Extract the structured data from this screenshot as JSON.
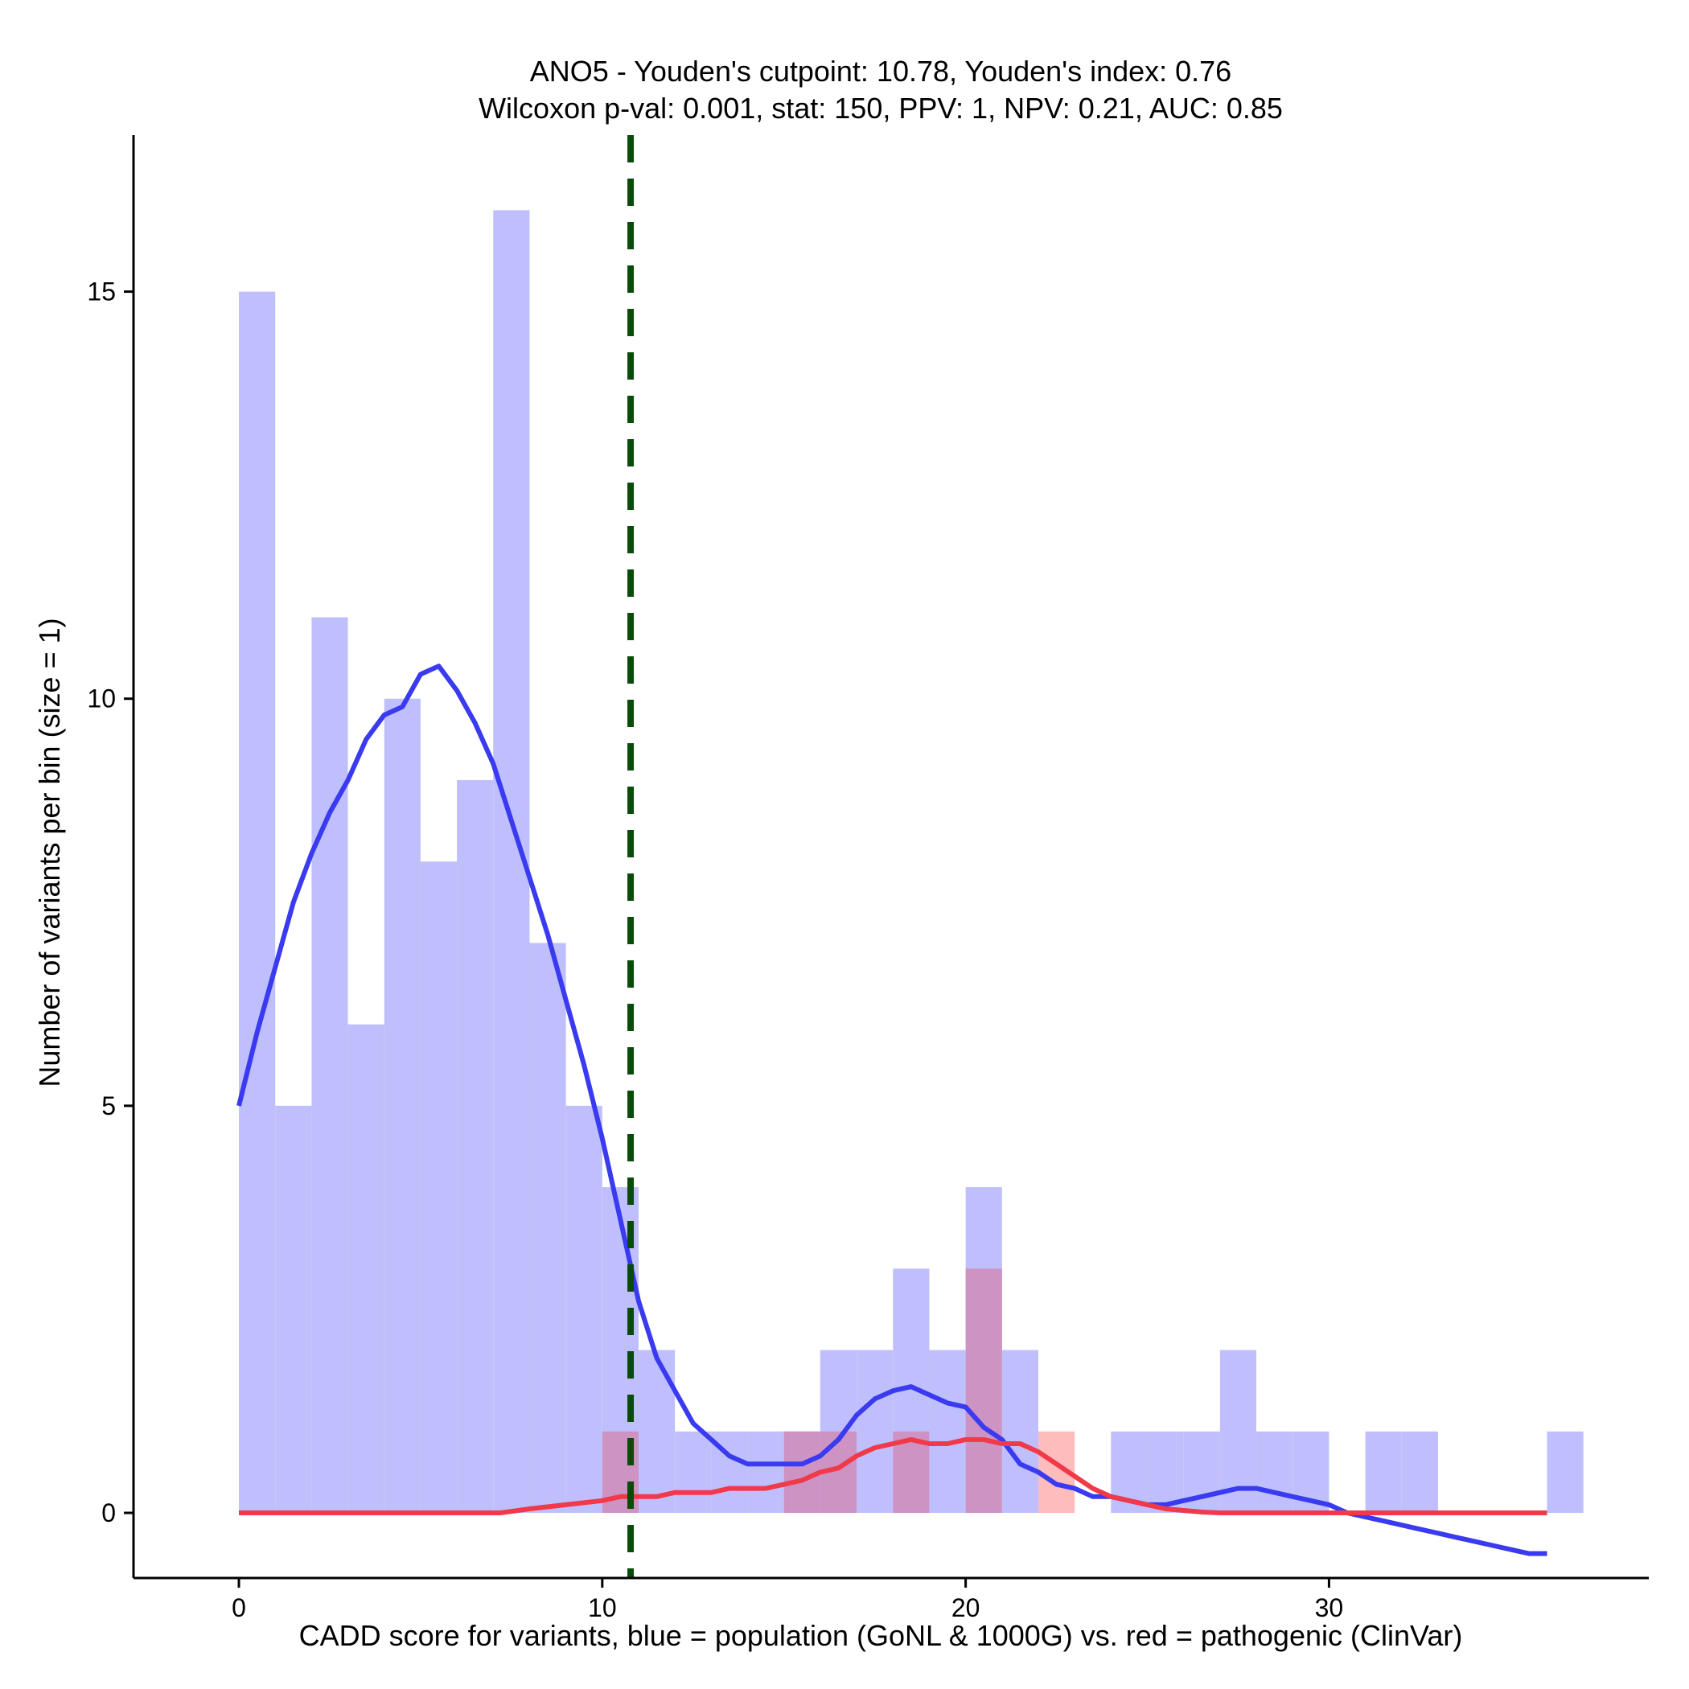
{
  "chart_data": {
    "type": "bar",
    "title_line1": "ANO5 - Youden's cutpoint: 10.78, Youden's index: 0.76",
    "title_line2": "Wilcoxon p-val: 0.001, stat: 150, PPV: 1, NPV: 0.21, AUC: 0.85",
    "xlabel": "CADD score for variants, blue = population (GoNL & 1000G) vs. red = pathogenic (ClinVar)",
    "ylabel": "Number of variants per bin (size = 1)",
    "xlim": [
      -2.9,
      38.8
    ],
    "ylim": [
      -0.8,
      17.1
    ],
    "x_ticks": [
      0,
      10,
      20,
      30
    ],
    "y_ticks": [
      0,
      5,
      10,
      15
    ],
    "bin_width": 1,
    "cutpoint": 10.78,
    "colors": {
      "population_bar": "#bfbffd",
      "pathogenic_bar": "#ffbcbc",
      "overlap_bar": "#cd93c3",
      "population_curve": "#3a3af0",
      "pathogenic_curve": "#f03a4a",
      "cutpoint_line": "#0a4a0a"
    },
    "series": [
      {
        "name": "population (GoNL & 1000G)",
        "bin_starts": [
          0,
          1,
          2,
          3,
          4,
          5,
          6,
          7,
          8,
          9,
          10,
          11,
          12,
          13,
          14,
          15,
          16,
          17,
          18,
          19,
          20,
          21,
          22,
          23,
          24,
          25,
          26,
          27,
          28,
          29,
          30,
          31,
          32,
          33,
          34,
          35,
          36
        ],
        "values": [
          15,
          5,
          11,
          6,
          10,
          8,
          9,
          16,
          7,
          5,
          4,
          2,
          1,
          1,
          1,
          1,
          2,
          2,
          3,
          2,
          4,
          2,
          0,
          0,
          1,
          1,
          1,
          2,
          1,
          1,
          0,
          1,
          1,
          0,
          0,
          0,
          1
        ]
      },
      {
        "name": "pathogenic (ClinVar)",
        "bin_starts": [
          10,
          15,
          16,
          18,
          20,
          22
        ],
        "values": [
          1,
          1,
          1,
          1,
          3,
          1
        ]
      }
    ],
    "density_population": {
      "x": [
        0,
        0.5,
        1,
        1.5,
        2,
        2.5,
        3,
        3.5,
        4,
        4.5,
        5,
        5.5,
        6,
        6.5,
        7,
        7.5,
        8,
        8.5,
        9,
        9.5,
        10,
        10.5,
        11,
        11.5,
        12,
        12.5,
        13,
        13.5,
        14,
        14.5,
        15,
        15.5,
        16,
        16.5,
        17,
        17.5,
        18,
        18.5,
        19,
        19.5,
        20,
        20.5,
        21,
        21.5,
        22,
        22.5,
        23,
        23.5,
        24,
        24.5,
        25,
        25.5,
        26,
        26.5,
        27,
        27.5,
        28,
        28.5,
        29,
        29.5,
        30,
        30.5,
        31,
        31.5,
        32,
        32.5,
        33,
        33.5,
        34,
        34.5,
        35,
        35.5,
        36
      ],
      "y": [
        5.0,
        5.9,
        6.7,
        7.5,
        8.1,
        8.6,
        9.0,
        9.5,
        9.8,
        9.9,
        10.3,
        10.4,
        10.1,
        9.7,
        9.2,
        8.5,
        7.8,
        7.1,
        6.3,
        5.5,
        4.6,
        3.6,
        2.6,
        1.9,
        1.5,
        1.1,
        0.9,
        0.7,
        0.6,
        0.6,
        0.6,
        0.6,
        0.7,
        0.9,
        1.2,
        1.4,
        1.5,
        1.55,
        1.45,
        1.35,
        1.3,
        1.05,
        0.9,
        0.6,
        0.5,
        0.35,
        0.3,
        0.2,
        0.2,
        0.15,
        0.1,
        0.1,
        0.15,
        0.2,
        0.25,
        0.3,
        0.3,
        0.25,
        0.2,
        0.15,
        0.1,
        0.0,
        -0.05,
        -0.1,
        -0.15,
        -0.2,
        -0.25,
        -0.3,
        -0.35,
        -0.4,
        -0.45,
        -0.5,
        -0.5
      ]
    },
    "density_pathogenic": {
      "x": [
        0,
        1,
        2,
        3,
        4,
        5,
        6,
        7,
        7.2,
        8,
        9,
        10,
        10.5,
        11,
        11.5,
        12,
        12.5,
        13,
        13.5,
        14,
        14.5,
        15,
        15.5,
        16,
        16.5,
        17,
        17.5,
        18,
        18.5,
        19,
        19.5,
        20,
        20.5,
        21,
        21.5,
        22,
        22.5,
        23,
        23.5,
        24,
        24.5,
        25,
        25.5,
        26,
        26.5,
        27,
        28,
        29,
        30,
        31,
        32,
        33,
        34,
        35,
        36
      ],
      "y": [
        0,
        0,
        0,
        0,
        0,
        0,
        0,
        0,
        0,
        0.05,
        0.1,
        0.15,
        0.2,
        0.2,
        0.2,
        0.25,
        0.25,
        0.25,
        0.3,
        0.3,
        0.3,
        0.35,
        0.4,
        0.5,
        0.55,
        0.7,
        0.8,
        0.85,
        0.9,
        0.85,
        0.85,
        0.9,
        0.9,
        0.85,
        0.85,
        0.75,
        0.6,
        0.45,
        0.3,
        0.2,
        0.15,
        0.1,
        0.05,
        0.03,
        0.01,
        0,
        0,
        0,
        0,
        0,
        0,
        0,
        0,
        0,
        0
      ]
    }
  }
}
